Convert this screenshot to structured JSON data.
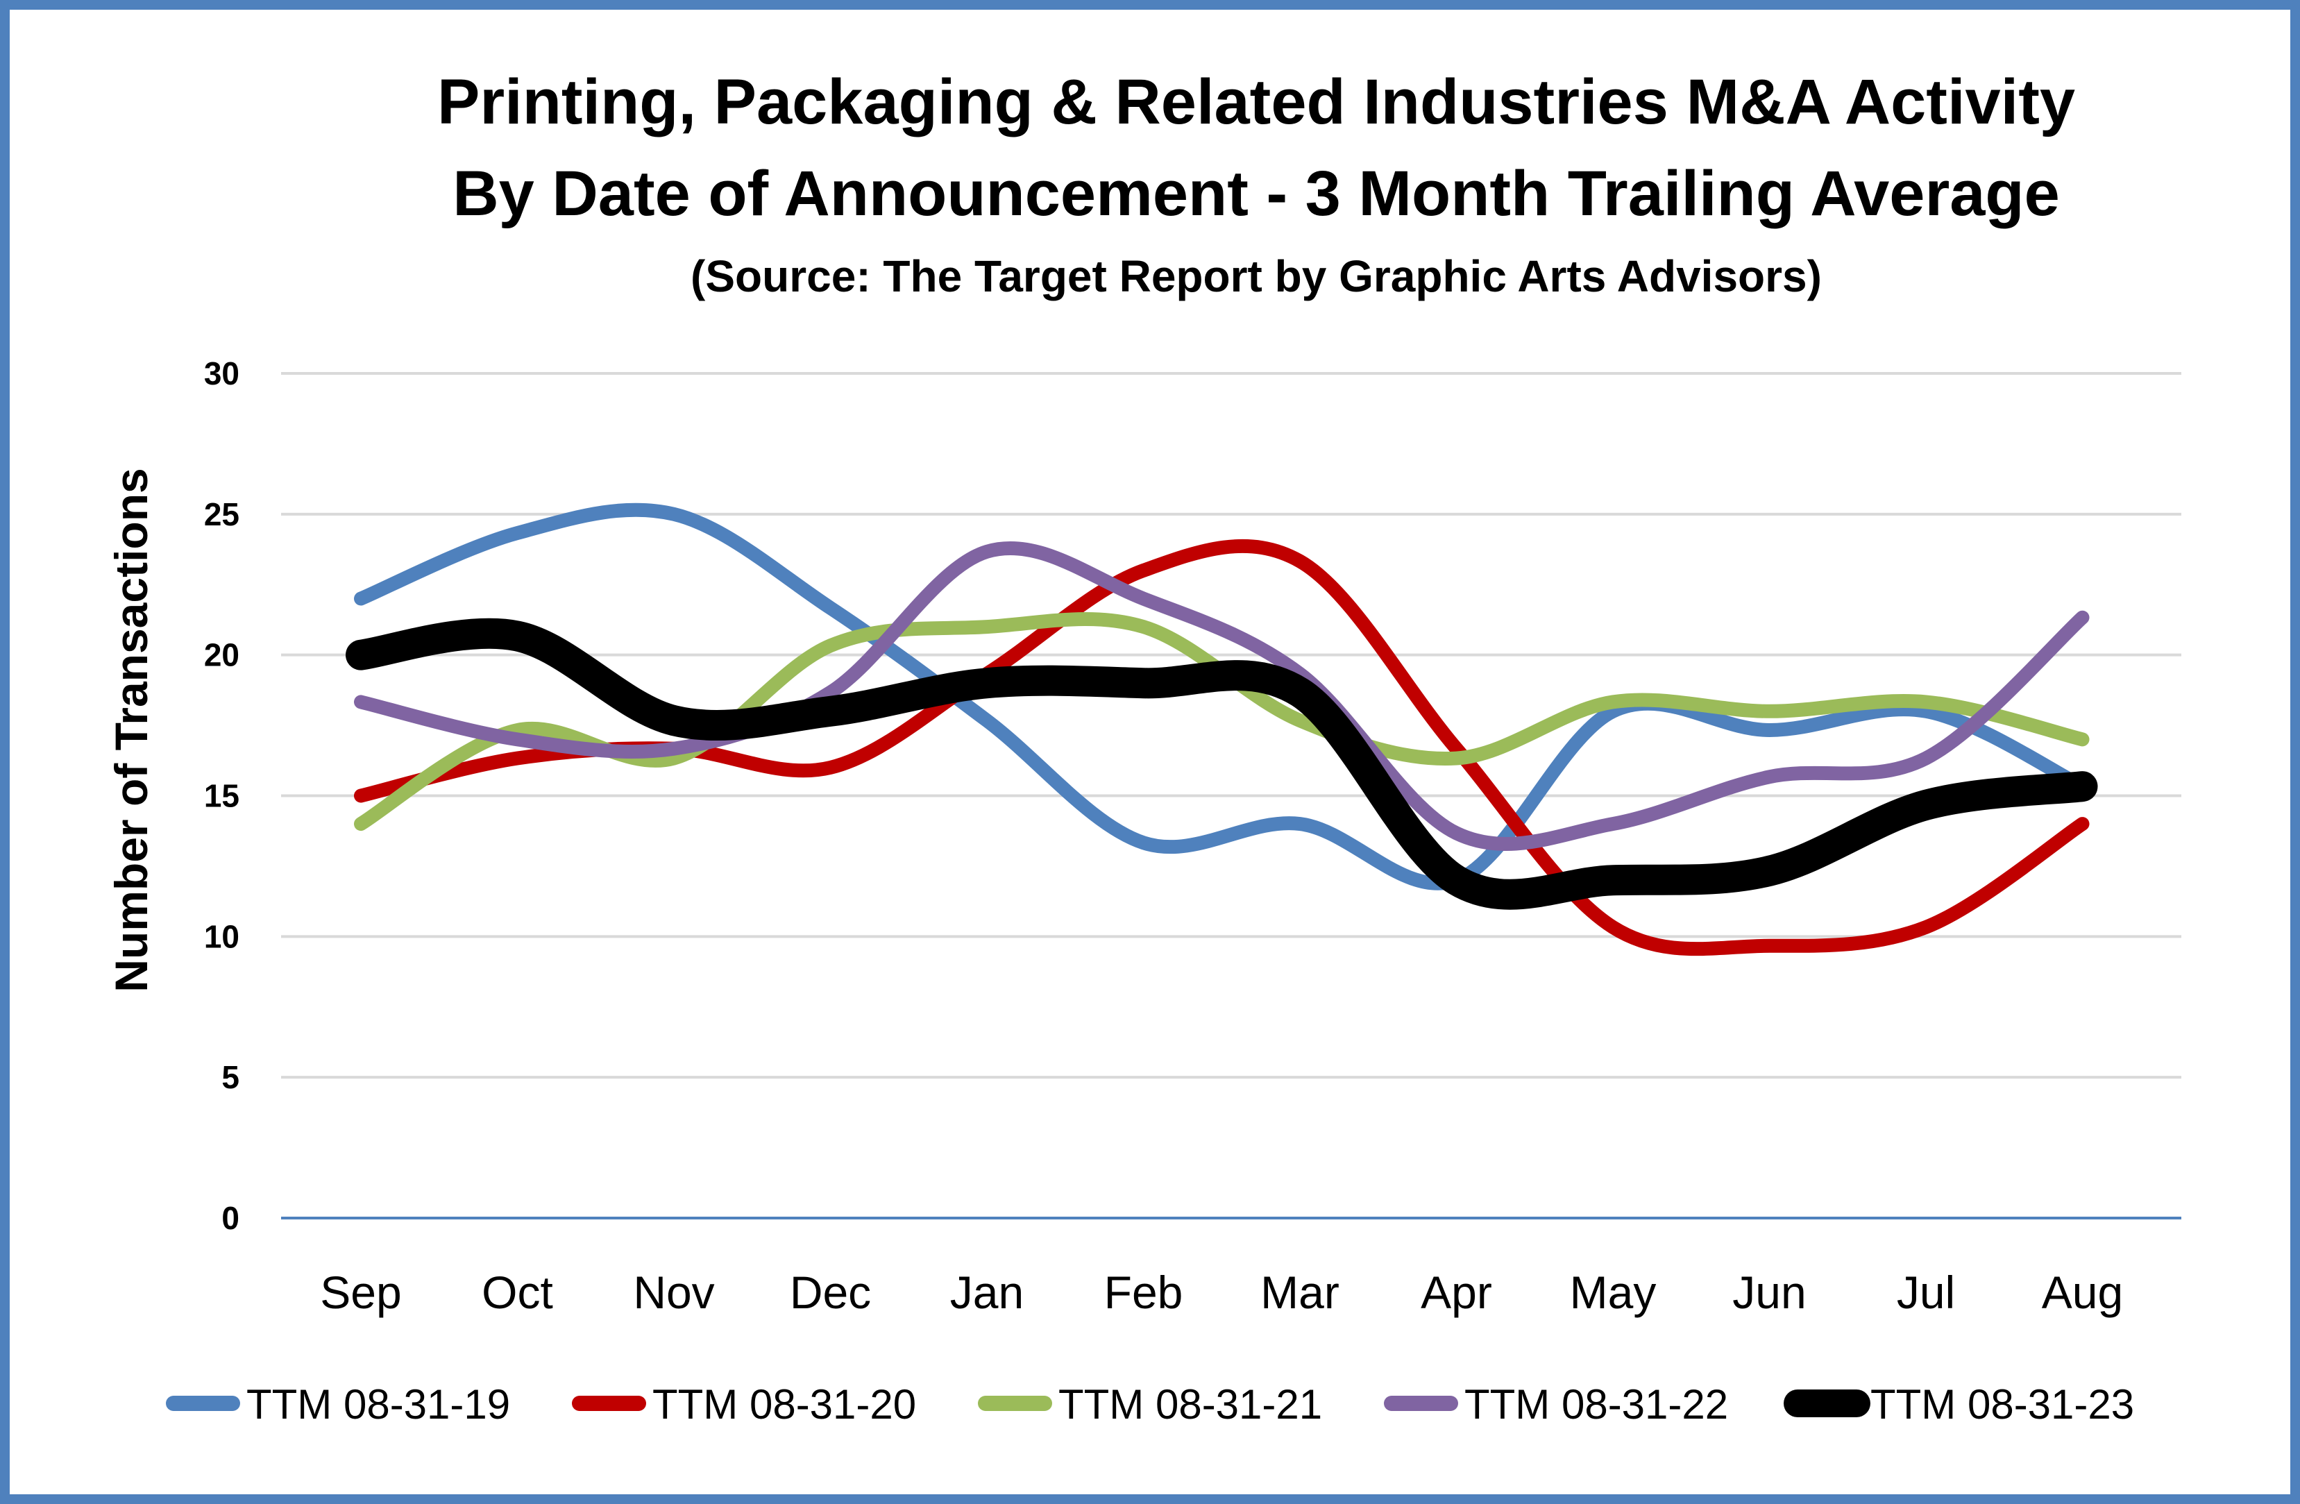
{
  "chart_data": {
    "type": "line",
    "title": "Printing, Packaging & Related Industries M&A Activity",
    "subtitle": "By Date of Announcement - 3 Month Trailing Average",
    "source": "(Source: The Target Report by Graphic Arts Advisors)",
    "xlabel": "",
    "ylabel": "Number of Transactions",
    "ylim": [
      0,
      30
    ],
    "yticks": [
      0,
      5,
      10,
      15,
      20,
      25,
      30
    ],
    "grid": true,
    "smooth": true,
    "legend_position": "bottom",
    "categories": [
      "Sep",
      "Oct",
      "Nov",
      "Dec",
      "Jan",
      "Feb",
      "Mar",
      "Apr",
      "May",
      "Jun",
      "Jul",
      "Aug"
    ],
    "series": [
      {
        "name": "TTM 08-31-19",
        "color": "#4F81BD",
        "emphasis": false,
        "values": [
          22,
          24.33,
          25,
          21.67,
          17.67,
          13.33,
          14,
          12,
          18,
          17.33,
          18,
          15.33
        ]
      },
      {
        "name": "TTM 08-31-20",
        "color": "#C00000",
        "emphasis": false,
        "values": [
          15,
          16.33,
          16.67,
          16,
          19.33,
          23,
          23.33,
          16.67,
          10.33,
          9.67,
          10.33,
          14
        ]
      },
      {
        "name": "TTM 08-31-21",
        "color": "#9BBB59",
        "emphasis": false,
        "values": [
          14,
          17.33,
          16.33,
          20.33,
          21,
          21,
          17.67,
          16.33,
          18.33,
          18,
          18.33,
          17
        ]
      },
      {
        "name": "TTM 08-31-22",
        "color": "#8064A2",
        "emphasis": false,
        "values": [
          18.33,
          17,
          16.67,
          18.67,
          23.67,
          22,
          19.33,
          13.67,
          14,
          15.67,
          16.33,
          21.33
        ]
      },
      {
        "name": "TTM 08-31-23",
        "color": "#000000",
        "emphasis": true,
        "values": [
          20,
          20.67,
          17.67,
          18,
          19,
          19,
          18.67,
          12,
          12,
          12.33,
          14.67,
          15.33
        ]
      }
    ]
  },
  "colors": {
    "frame_border": "#4F81BD",
    "axis_line": "#4F81BD",
    "gridline": "#D9D9D9"
  }
}
